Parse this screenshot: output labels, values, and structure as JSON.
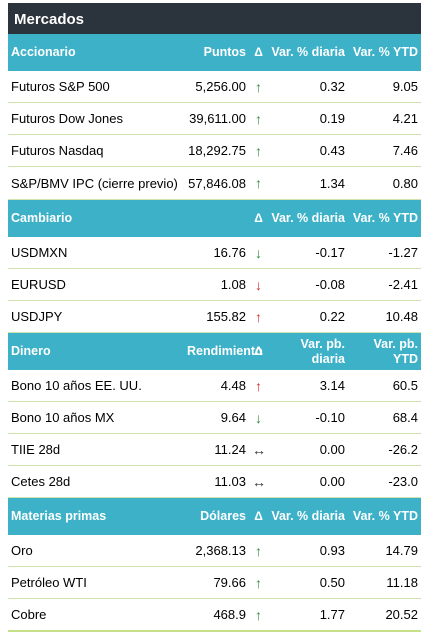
{
  "title": "Mercados",
  "sections": [
    {
      "headers": [
        "Accionario",
        "Puntos",
        "Δ",
        "Var. % diaria",
        "Var. % YTD"
      ],
      "rows": [
        {
          "name": "Futuros S&P 500",
          "value": "5,256.00",
          "arrow": "↑",
          "arrow_color": "green",
          "daily": "0.32",
          "ytd": "9.05"
        },
        {
          "name": "Futuros Dow Jones",
          "value": "39,611.00",
          "arrow": "↑",
          "arrow_color": "green",
          "daily": "0.19",
          "ytd": "4.21"
        },
        {
          "name": "Futuros Nasdaq",
          "value": "18,292.75",
          "arrow": "↑",
          "arrow_color": "green",
          "daily": "0.43",
          "ytd": "7.46"
        },
        {
          "name": "S&P/BMV IPC (cierre previo)",
          "value": "57,846.08",
          "arrow": "↑",
          "arrow_color": "green",
          "daily": "1.34",
          "ytd": "0.80"
        }
      ]
    },
    {
      "headers": [
        "Cambiario",
        "",
        "Δ",
        "Var. % diaria",
        "Var. % YTD"
      ],
      "rows": [
        {
          "name": "USDMXN",
          "value": "16.76",
          "arrow": "↓",
          "arrow_color": "green",
          "daily": "-0.17",
          "ytd": "-1.27"
        },
        {
          "name": "EURUSD",
          "value": "1.08",
          "arrow": "↓",
          "arrow_color": "red",
          "daily": "-0.08",
          "ytd": "-2.41"
        },
        {
          "name": "USDJPY",
          "value": "155.82",
          "arrow": "↑",
          "arrow_color": "red",
          "daily": "0.22",
          "ytd": "10.48"
        }
      ]
    },
    {
      "headers": [
        "Dinero",
        "Rendimiento",
        "Δ",
        "Var. pb. diaria",
        "Var. pb. YTD"
      ],
      "rows": [
        {
          "name": "Bono 10 años EE. UU.",
          "value": "4.48",
          "arrow": "↑",
          "arrow_color": "red",
          "daily": "3.14",
          "ytd": "60.5"
        },
        {
          "name": "Bono 10 años MX",
          "value": "9.64",
          "arrow": "↓",
          "arrow_color": "green",
          "daily": "-0.10",
          "ytd": "68.4"
        },
        {
          "name": "TIIE 28d",
          "value": "11.24",
          "arrow": "↔",
          "arrow_color": "neutral",
          "daily": "0.00",
          "ytd": "-26.2"
        },
        {
          "name": "Cetes 28d",
          "value": "11.03",
          "arrow": "↔",
          "arrow_color": "neutral",
          "daily": "0.00",
          "ytd": "-23.0"
        }
      ]
    },
    {
      "headers": [
        "Materias primas",
        "Dólares",
        "Δ",
        "Var. % diaria",
        "Var. % YTD"
      ],
      "rows": [
        {
          "name": "Oro",
          "value": "2,368.13",
          "arrow": "↑",
          "arrow_color": "green",
          "daily": "0.93",
          "ytd": "14.79"
        },
        {
          "name": "Petróleo WTI",
          "value": "79.66",
          "arrow": "↑",
          "arrow_color": "green",
          "daily": "0.50",
          "ytd": "11.18"
        },
        {
          "name": "Cobre",
          "value": "468.9",
          "arrow": "↑",
          "arrow_color": "green",
          "daily": "1.77",
          "ytd": "20.52"
        }
      ]
    }
  ],
  "colors": {
    "title_bg": "#2b333c",
    "header_bg": "#3cb1c8",
    "up_green": "#2e8b3a",
    "red": "#d22b2b",
    "row_border": "#cfe3ad"
  }
}
